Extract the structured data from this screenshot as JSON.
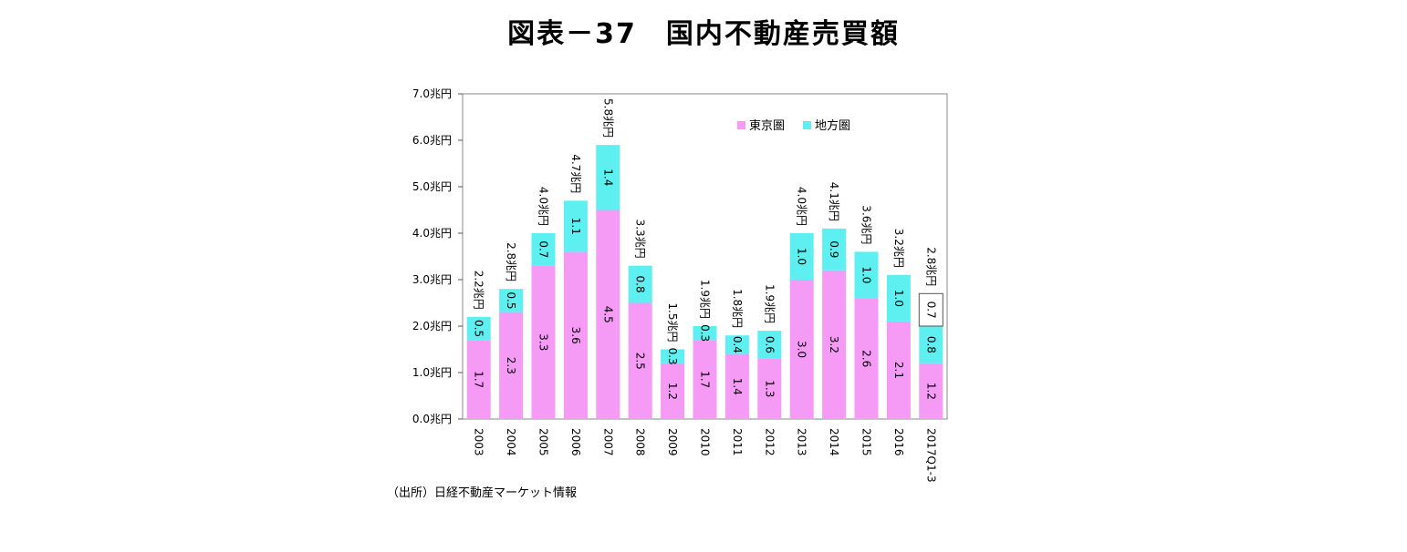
{
  "title": "図表－37　国内不動産売買額",
  "source": "（出所）日経不動産マーケット情報",
  "chart_data": {
    "type": "bar",
    "stacked": true,
    "categories": [
      "2003",
      "2004",
      "2005",
      "2006",
      "2007",
      "2008",
      "2009",
      "2010",
      "2011",
      "2012",
      "2013",
      "2014",
      "2015",
      "2016",
      "2017Q1-3"
    ],
    "series": [
      {
        "name": "東京圏",
        "color": "#f59af5",
        "values": [
          1.7,
          2.3,
          3.3,
          3.6,
          4.5,
          2.5,
          1.2,
          1.7,
          1.4,
          1.3,
          3.0,
          3.2,
          2.6,
          2.1,
          1.2
        ],
        "labels": [
          "1.7",
          "2.3",
          "3.3",
          "3.6",
          "4.5",
          "2.5",
          "1.2",
          "1.7",
          "1.4",
          "1.3",
          "3.0",
          "3.2",
          "2.6",
          "2.1",
          "1.2"
        ]
      },
      {
        "name": "地方圏",
        "color": "#5ef0f0",
        "values": [
          0.5,
          0.5,
          0.7,
          1.1,
          1.4,
          0.8,
          0.3,
          0.3,
          0.4,
          0.6,
          1.0,
          0.9,
          1.0,
          1.0,
          0.8
        ],
        "labels": [
          "0.5",
          "0.5",
          "0.7",
          "1.1",
          "1.4",
          "0.8",
          "0.3",
          "0.3",
          "0.4",
          "0.6",
          "1.0",
          "0.9",
          "1.0",
          "1.0",
          "0.8"
        ]
      },
      {
        "name": "",
        "color": "#ffffff",
        "outline": "#555555",
        "values": [
          0,
          0,
          0,
          0,
          0,
          0,
          0,
          0,
          0,
          0,
          0,
          0,
          0,
          0,
          0.7
        ],
        "labels": [
          "",
          "",
          "",
          "",
          "",
          "",
          "",
          "",
          "",
          "",
          "",
          "",
          "",
          "",
          "0.7"
        ]
      }
    ],
    "totals": [
      "2.2兆円",
      "2.8兆円",
      "4.0兆円",
      "4.7兆円",
      "5.8兆円",
      "3.3兆円",
      "1.5兆円",
      "1.9兆円",
      "1.8兆円",
      "1.9兆円",
      "4.0兆円",
      "4.1兆円",
      "3.6兆円",
      "3.2兆円",
      "2.8兆円"
    ],
    "ylim": [
      0,
      7
    ],
    "yticks": [
      "0.0兆円",
      "1.0兆円",
      "2.0兆円",
      "3.0兆円",
      "4.0兆円",
      "5.0兆円",
      "6.0兆円",
      "7.0兆円"
    ],
    "legend_position": "top-right",
    "grid": false
  }
}
